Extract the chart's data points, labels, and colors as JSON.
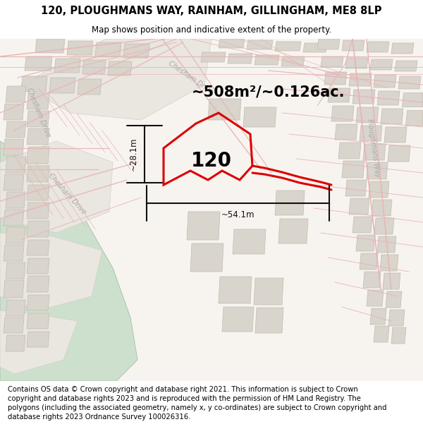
{
  "title": "120, PLOUGHMANS WAY, RAINHAM, GILLINGHAM, ME8 8LP",
  "subtitle": "Map shows position and indicative extent of the property.",
  "area_text": "~508m²/~0.126ac.",
  "dim_width": "~54.1m",
  "dim_height": "~28.1m",
  "label": "120",
  "footer": "Contains OS data © Crown copyright and database right 2021. This information is subject to Crown copyright and database rights 2023 and is reproduced with the permission of HM Land Registry. The polygons (including the associated geometry, namely x, y co-ordinates) are subject to Crown copyright and database rights 2023 Ordnance Survey 100026316.",
  "bg_color": "#ffffff",
  "map_bg": "#f7f4f0",
  "road_line_color": "#e8b4b4",
  "road_fill_color": "#f5e8e8",
  "plot_color": "#dd0000",
  "plot_linewidth": 2.2,
  "dim_color": "#111111",
  "green_color": "#cde0cd",
  "building_color": "#d9d4cc",
  "building_edge": "#c0bbb3",
  "block_fill": "#eae6e0",
  "block_edge": "#d4cfc8",
  "title_fontsize": 10.5,
  "subtitle_fontsize": 8.5,
  "area_fontsize": 15,
  "label_fontsize": 20,
  "footer_fontsize": 7.2,
  "road_label_color": "#aaaaaa",
  "road_label_size": 7
}
